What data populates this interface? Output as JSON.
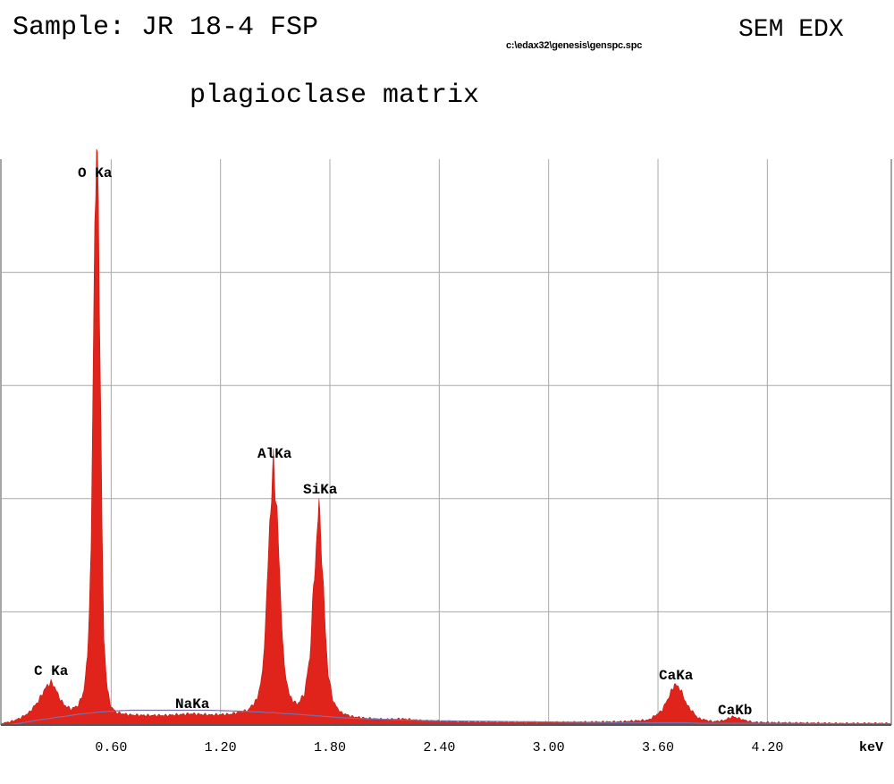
{
  "header": {
    "sample": "Sample: JR 18-4 FSP",
    "instrument": "SEM EDX",
    "file_path": "c:\\edax32\\genesis\\genspc.spc",
    "subtitle": "plagioclase matrix"
  },
  "chart_data": {
    "type": "area",
    "title": "plagioclase matrix",
    "xlabel": "keV",
    "ylabel": "",
    "xlim": [
      0.0,
      4.88
    ],
    "ylim": [
      0,
      100
    ],
    "xticks": [
      0.6,
      1.2,
      1.8,
      2.4,
      3.0,
      3.6,
      4.2
    ],
    "tick_labels": [
      "0.60",
      "1.20",
      "1.80",
      "2.40",
      "3.00",
      "3.60",
      "4.20"
    ],
    "grid": true,
    "fill_color": "#e0241b",
    "background_color": "#7a6fa8",
    "peaks": [
      {
        "label": "C Ka",
        "energy": 0.27,
        "height": 7.5
      },
      {
        "label": "O Ka",
        "energy": 0.52,
        "height": 100
      },
      {
        "label": "NaKa",
        "energy": 1.04,
        "height": 2.0
      },
      {
        "label": "AlKa",
        "energy": 1.49,
        "height": 46
      },
      {
        "label": "SiKa",
        "energy": 1.74,
        "height": 39
      },
      {
        "label": "CaKa",
        "energy": 3.69,
        "height": 7.2
      },
      {
        "label": "CaKb",
        "energy": 4.01,
        "height": 1.5
      }
    ],
    "spectrum": {
      "energy": [
        0.0,
        0.05,
        0.1,
        0.15,
        0.2,
        0.23,
        0.25,
        0.27,
        0.29,
        0.31,
        0.34,
        0.38,
        0.42,
        0.45,
        0.47,
        0.49,
        0.5,
        0.51,
        0.52,
        0.53,
        0.54,
        0.55,
        0.56,
        0.58,
        0.6,
        0.63,
        0.7,
        0.8,
        0.9,
        1.0,
        1.04,
        1.08,
        1.15,
        1.25,
        1.35,
        1.4,
        1.43,
        1.45,
        1.47,
        1.49,
        1.51,
        1.53,
        1.55,
        1.58,
        1.62,
        1.66,
        1.69,
        1.71,
        1.73,
        1.74,
        1.75,
        1.77,
        1.79,
        1.82,
        1.86,
        1.92,
        2.0,
        2.1,
        2.2,
        2.3,
        2.5,
        2.8,
        3.1,
        3.4,
        3.55,
        3.62,
        3.66,
        3.69,
        3.72,
        3.76,
        3.82,
        3.9,
        3.96,
        4.01,
        4.06,
        4.12,
        4.3,
        4.6,
        4.88
      ],
      "counts": [
        0.3,
        0.6,
        1.2,
        2.2,
        4.2,
        6.0,
        7.0,
        7.5,
        6.8,
        5.2,
        3.6,
        2.8,
        3.5,
        6.0,
        12.0,
        30.0,
        60.0,
        90.0,
        100.0,
        92.0,
        65.0,
        35.0,
        15.0,
        6.0,
        3.2,
        2.2,
        1.8,
        1.7,
        1.7,
        1.9,
        2.0,
        1.9,
        1.8,
        1.9,
        2.6,
        4.5,
        9.0,
        20.0,
        36.0,
        46.0,
        38.0,
        22.0,
        10.0,
        5.0,
        3.6,
        5.5,
        12.0,
        24.0,
        34.0,
        39.0,
        34.0,
        20.0,
        9.0,
        4.0,
        2.2,
        1.5,
        1.2,
        1.0,
        1.1,
        0.8,
        0.6,
        0.5,
        0.5,
        0.6,
        0.9,
        2.5,
        5.0,
        7.2,
        6.5,
        3.5,
        1.2,
        0.6,
        0.8,
        1.5,
        1.0,
        0.5,
        0.4,
        0.3,
        0.3
      ],
      "background": [
        0.0,
        0.1,
        0.3,
        0.6,
        0.9,
        1.0,
        1.1,
        1.2,
        1.3,
        1.4,
        1.5,
        1.7,
        1.9,
        2.0,
        2.1,
        2.1,
        2.2,
        2.2,
        2.2,
        2.3,
        2.3,
        2.3,
        2.3,
        2.4,
        2.4,
        2.5,
        2.6,
        2.6,
        2.6,
        2.6,
        2.6,
        2.6,
        2.6,
        2.5,
        2.4,
        2.3,
        2.3,
        2.2,
        2.2,
        2.2,
        2.1,
        2.1,
        2.0,
        2.0,
        1.9,
        1.8,
        1.7,
        1.7,
        1.6,
        1.6,
        1.6,
        1.5,
        1.5,
        1.4,
        1.3,
        1.2,
        1.1,
        1.0,
        0.9,
        0.8,
        0.7,
        0.6,
        0.5,
        0.4,
        0.4,
        0.4,
        0.4,
        0.4,
        0.4,
        0.4,
        0.3,
        0.3,
        0.3,
        0.3,
        0.3,
        0.3,
        0.3,
        0.2,
        0.2
      ]
    }
  }
}
